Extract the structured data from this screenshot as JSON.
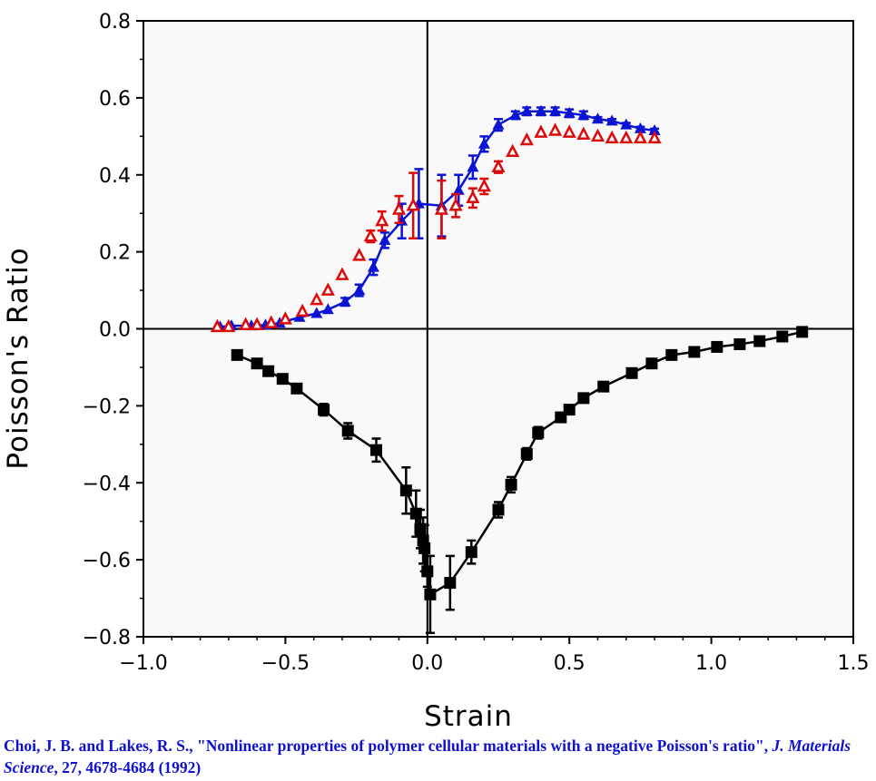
{
  "chart_data": {
    "type": "scatter",
    "xlabel": "Strain",
    "ylabel": "Poisson's Ratio",
    "xlim": [
      -1.0,
      1.5
    ],
    "ylim": [
      -0.8,
      0.8
    ],
    "xticks": [
      "-1.0",
      "-0.5",
      "0.0",
      "0.5",
      "1.0",
      "1.5"
    ],
    "yticks": [
      "0.8",
      "0.6",
      "0.4",
      "0.2",
      "0.0",
      "-0.2",
      "-0.4",
      "-0.6",
      "-0.8"
    ],
    "grid": false,
    "zero_lines": true,
    "series": [
      {
        "marker": "filled-square",
        "color": "#000000",
        "line": true,
        "x": [
          -0.67,
          -0.6,
          -0.56,
          -0.51,
          -0.46,
          -0.365,
          -0.28,
          -0.18,
          -0.075,
          -0.04,
          -0.025,
          -0.015,
          -0.01,
          0.0,
          0.01,
          0.08,
          0.155,
          0.25,
          0.295,
          0.35,
          0.39,
          0.47,
          0.5,
          0.55,
          0.62,
          0.72,
          0.79,
          0.86,
          0.94,
          1.02,
          1.1,
          1.17,
          1.25,
          1.32
        ],
        "y": [
          -0.068,
          -0.09,
          -0.11,
          -0.13,
          -0.155,
          -0.21,
          -0.265,
          -0.315,
          -0.42,
          -0.48,
          -0.52,
          -0.55,
          -0.57,
          -0.63,
          -0.69,
          -0.66,
          -0.58,
          -0.47,
          -0.405,
          -0.325,
          -0.27,
          -0.23,
          -0.21,
          -0.18,
          -0.15,
          -0.115,
          -0.09,
          -0.068,
          -0.06,
          -0.047,
          -0.04,
          -0.032,
          -0.02,
          -0.008
        ],
        "yerr": [
          0,
          0,
          0,
          0,
          0,
          0.015,
          0.02,
          0.03,
          0.06,
          0.06,
          0.05,
          0.06,
          0.06,
          0.04,
          0.1,
          0.07,
          0.03,
          0.02,
          0.02,
          0.015,
          0.015,
          0,
          0,
          0,
          0,
          0,
          0,
          0,
          0,
          0,
          0,
          0,
          0,
          0
        ]
      },
      {
        "marker": "filled-triangle",
        "color": "#0a14d2",
        "line": true,
        "x": [
          -0.73,
          -0.69,
          -0.62,
          -0.57,
          -0.52,
          -0.45,
          -0.39,
          -0.35,
          -0.29,
          -0.24,
          -0.19,
          -0.15,
          -0.09,
          -0.03,
          0.05,
          0.11,
          0.16,
          0.2,
          0.25,
          0.31,
          0.35,
          0.4,
          0.45,
          0.5,
          0.55,
          0.6,
          0.65,
          0.7,
          0.75,
          0.8
        ],
        "y": [
          0.005,
          0.008,
          0.008,
          0.01,
          0.015,
          0.03,
          0.04,
          0.05,
          0.07,
          0.1,
          0.16,
          0.23,
          0.28,
          0.325,
          0.32,
          0.36,
          0.42,
          0.48,
          0.53,
          0.555,
          0.565,
          0.565,
          0.565,
          0.56,
          0.555,
          0.545,
          0.54,
          0.53,
          0.52,
          0.515
        ],
        "yerr": [
          0,
          0,
          0,
          0,
          0,
          0,
          0,
          0,
          0.01,
          0.015,
          0.02,
          0.02,
          0.045,
          0.09,
          0.08,
          0.04,
          0.03,
          0.02,
          0.015,
          0.01,
          0.01,
          0.01,
          0.01,
          0.01,
          0.01,
          0.005,
          0.005,
          0.005,
          0.005,
          0.005
        ]
      },
      {
        "marker": "open-triangle",
        "color": "#dc0a0a",
        "line": false,
        "x": [
          -0.74,
          -0.7,
          -0.64,
          -0.6,
          -0.55,
          -0.5,
          -0.44,
          -0.39,
          -0.35,
          -0.3,
          -0.24,
          -0.2,
          -0.16,
          -0.1,
          -0.05,
          0.05,
          0.1,
          0.16,
          0.2,
          0.25,
          0.3,
          0.35,
          0.4,
          0.45,
          0.5,
          0.55,
          0.6,
          0.65,
          0.7,
          0.75,
          0.8
        ],
        "y": [
          0.005,
          0.005,
          0.01,
          0.01,
          0.015,
          0.025,
          0.045,
          0.075,
          0.1,
          0.14,
          0.19,
          0.24,
          0.28,
          0.31,
          0.32,
          0.31,
          0.32,
          0.34,
          0.37,
          0.42,
          0.46,
          0.49,
          0.51,
          0.515,
          0.51,
          0.505,
          0.5,
          0.495,
          0.495,
          0.495,
          0.495
        ],
        "yerr": [
          0,
          0,
          0,
          0,
          0,
          0,
          0,
          0,
          0,
          0,
          0,
          0.015,
          0.025,
          0.035,
          0.085,
          0.075,
          0.03,
          0.025,
          0.02,
          0.015,
          0,
          0,
          0,
          0,
          0,
          0,
          0,
          0,
          0,
          0,
          0
        ]
      }
    ]
  },
  "caption": {
    "authors": "Choi, J. B. and Lakes, R. S., \"Nonlinear properties of polymer cellular materials with a negative Poisson's ratio\", ",
    "journal": "J. Materials Science",
    "details": ", 27, 4678-4684 (1992)"
  }
}
